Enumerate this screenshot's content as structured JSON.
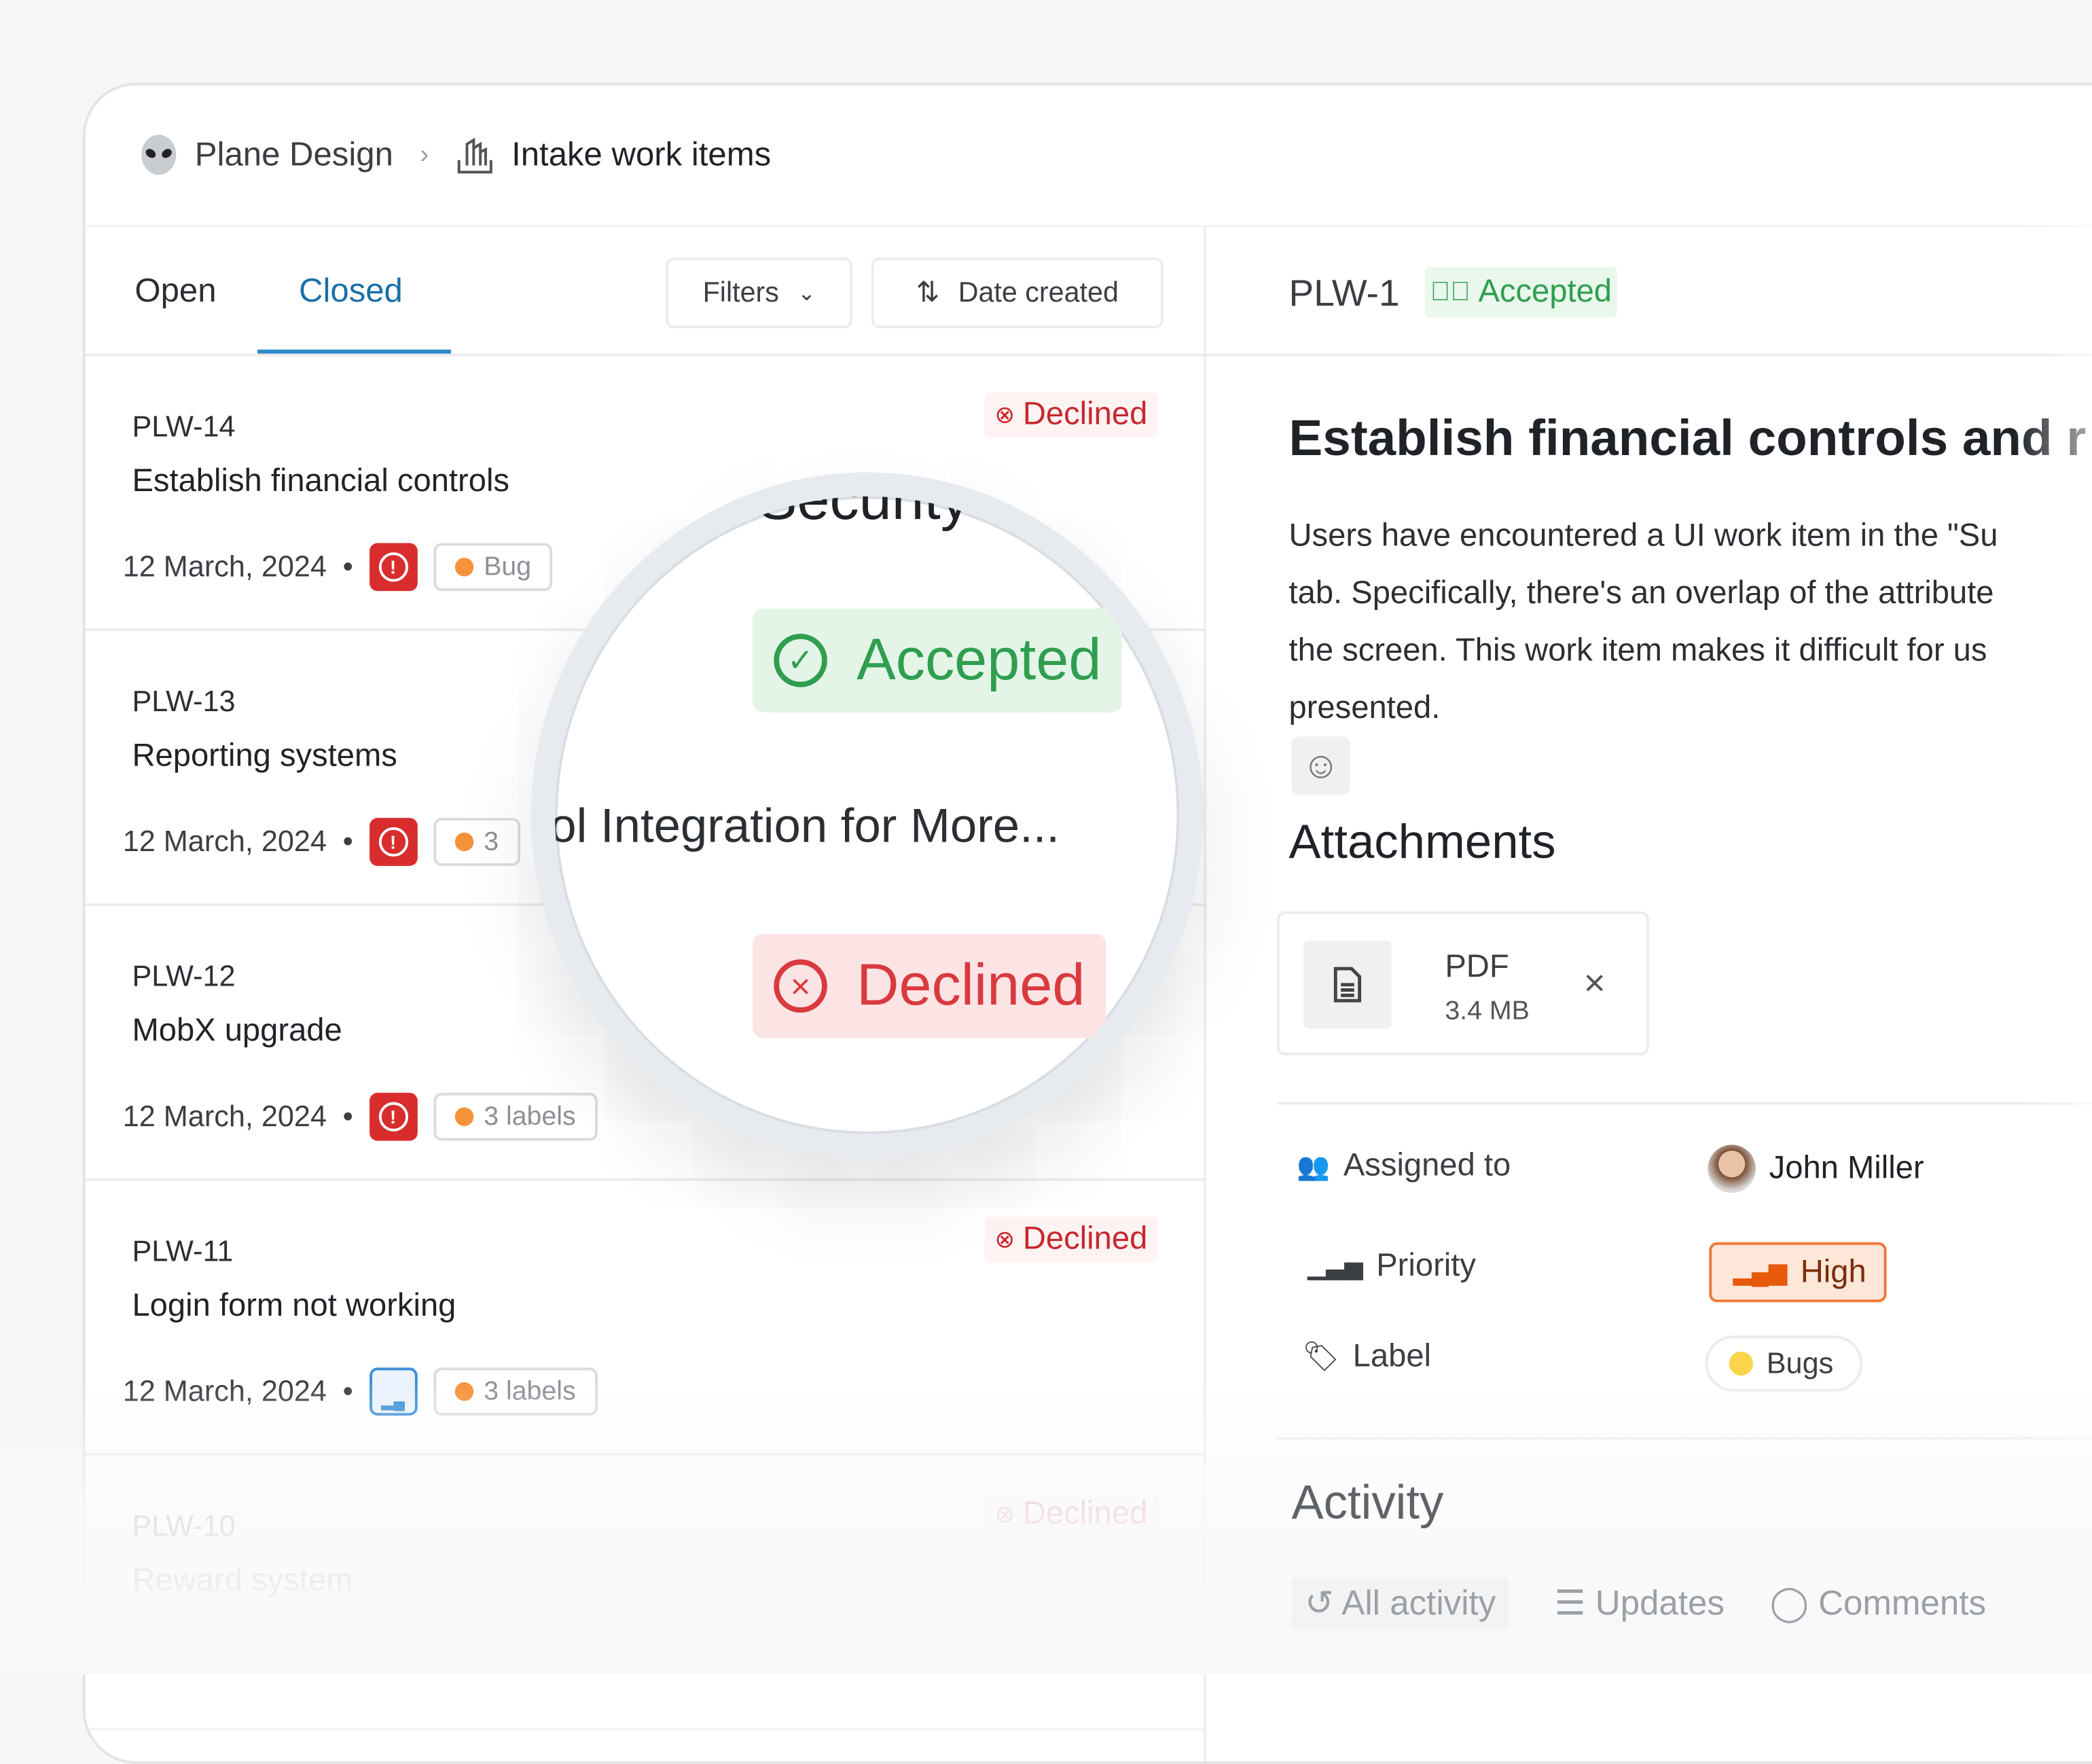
{
  "breadcrumb": {
    "workspace": "Plane Design",
    "page": "Intake work items",
    "workspace_icon": "alien-icon",
    "page_icon": "intake-icon"
  },
  "tabs": [
    {
      "label": "Open",
      "active": false
    },
    {
      "label": "Closed",
      "active": true
    }
  ],
  "toolbar": {
    "filters_label": "Filters",
    "sort_label": "Date created"
  },
  "colors": {
    "accent": "#1a6fa8",
    "declined": "#c8272d",
    "accepted": "#2f9e4f",
    "priority_high": "#e8590c",
    "urgent": "#d92d2d"
  },
  "items": [
    {
      "id": "PLW-14",
      "title": "Establish financial controls",
      "date": "12 March, 2024",
      "status": "Declined",
      "priority": "urgent",
      "labels": "Bug"
    },
    {
      "id": "PLW-13",
      "title": "Reporting systems",
      "date": "12 March, 2024",
      "status": "",
      "priority": "urgent",
      "labels": "3"
    },
    {
      "id": "PLW-12",
      "title": "MobX upgrade",
      "date": "12 March, 2024",
      "status": "",
      "priority": "urgent",
      "labels": "3 labels"
    },
    {
      "id": "PLW-11",
      "title": "Login form not working",
      "date": "12 March, 2024",
      "status": "Declined",
      "priority": "low",
      "labels": "3 labels"
    },
    {
      "id": "PLW-10",
      "title": "Reward system",
      "date": "12 March, 2024",
      "status": "Declined",
      "priority": "",
      "labels": ""
    }
  ],
  "magnifier": {
    "top_text": "Security",
    "accepted": "Accepted",
    "middle_text": "ol Integration for More...",
    "declined": "Declined"
  },
  "detail": {
    "id": "PLW-1",
    "status": "Accepted",
    "title": "Establish financial controls and r",
    "description": [
      "Users have encountered a UI work item in the \"Su",
      "tab. Specifically, there's an overlap of the attribute",
      "the screen. This work item makes it difficult for us",
      "presented."
    ],
    "attachments_heading": "Attachments",
    "attachment": {
      "type": "PDF",
      "size": "3.4 MB"
    },
    "properties": [
      {
        "label": "Assigned to",
        "value": "John Miller",
        "icon": "users-icon"
      },
      {
        "label": "Priority",
        "value": "High",
        "icon": "signal-icon"
      },
      {
        "label": "Label",
        "value": "Bugs",
        "icon": "tag-icon"
      }
    ],
    "activity_heading": "Activity",
    "activity_tabs": [
      "All activity",
      "Updates",
      "Comments"
    ]
  }
}
